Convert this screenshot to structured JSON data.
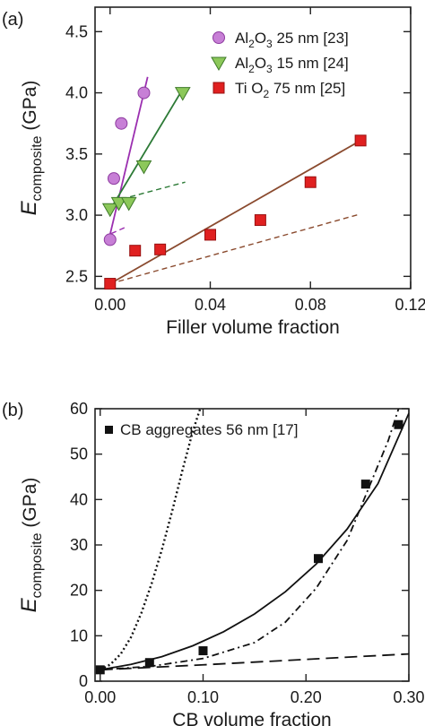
{
  "chart_data": [
    {
      "panel_label": "(a)",
      "type": "scatter",
      "xlabel": "Filler volume fraction",
      "ylabel": {
        "main": "E",
        "subscript": "composite",
        "unit": " (GPa)"
      },
      "xlim": [
        -0.006,
        0.12
      ],
      "ylim": [
        2.4,
        4.7
      ],
      "xticks": [
        0.0,
        0.04,
        0.08,
        0.12
      ],
      "xtick_labels": [
        "0.00",
        "0.04",
        "0.08",
        "0.12"
      ],
      "yticks": [
        2.5,
        3.0,
        3.5,
        4.0,
        4.5
      ],
      "ytick_labels": [
        "2.5",
        "3.0",
        "3.5",
        "4.0",
        "4.5"
      ],
      "grid": false,
      "legend_position": "top-right",
      "series": [
        {
          "name": "Al2O3 25 nm [23]",
          "legend": {
            "pre": "Al",
            "sub1": "2",
            "mid": "O",
            "sub2": "3",
            "post": "  25 nm [23]"
          },
          "marker": "circle",
          "color": "#c77fd6",
          "edge": "#8e3ca0",
          "line_color": "#9b2fb0",
          "x": [
            0.0,
            0.0015,
            0.0045,
            0.0135
          ],
          "y": [
            2.8,
            3.3,
            3.75,
            4.0
          ],
          "fit_solid": [
            [
              -0.0005,
              2.8
            ],
            [
              0.015,
              4.13
            ]
          ],
          "fit_dashed": [
            [
              0.0005,
              2.85
            ],
            [
              0.006,
              2.9
            ]
          ]
        },
        {
          "name": "Al2O3 15 nm [24]",
          "legend": {
            "pre": "Al",
            "sub1": "2",
            "mid": "O",
            "sub2": "3",
            "post": "  15 nm [24]"
          },
          "marker": "triangle-down",
          "color": "#8cc85a",
          "edge": "#3e7a2a",
          "line_color": "#2c7a36",
          "x": [
            0.0,
            0.0035,
            0.0075,
            0.0135,
            0.029
          ],
          "y": [
            3.05,
            3.1,
            3.1,
            3.4,
            4.0
          ],
          "fit_solid": [
            [
              0.0002,
              3.05
            ],
            [
              0.029,
              4.03
            ]
          ],
          "fit_dashed": [
            [
              0.008,
              3.15
            ],
            [
              0.03,
              3.27
            ]
          ]
        },
        {
          "name": "TiO2 75 nm [25]",
          "legend": {
            "pre": "Ti O",
            "sub1": "2",
            "mid": "",
            "sub2": "",
            "post": "  75 nm [25]"
          },
          "marker": "square",
          "color": "#e02020",
          "edge": "#991111",
          "line_color": "#8a4a2e",
          "x": [
            0.0,
            0.01,
            0.02,
            0.04,
            0.06,
            0.08,
            0.1
          ],
          "y": [
            2.44,
            2.71,
            2.72,
            2.84,
            2.96,
            3.27,
            3.61
          ],
          "fit_solid": [
            [
              0.0,
              2.44
            ],
            [
              0.1,
              3.61
            ]
          ],
          "fit_dashed": [
            [
              0.0,
              2.44
            ],
            [
              0.1,
              3.01
            ]
          ]
        }
      ]
    },
    {
      "panel_label": "(b)",
      "type": "scatter",
      "xlabel": "CB volume fraction",
      "ylabel": {
        "main": "E",
        "subscript": "composite",
        "unit": " (GPa)"
      },
      "xlim": [
        -0.005,
        0.3
      ],
      "ylim": [
        0,
        60
      ],
      "xticks": [
        0.0,
        0.1,
        0.2,
        0.3
      ],
      "xtick_labels": [
        "0.00",
        "0.10",
        "0.20",
        "0.30"
      ],
      "yticks": [
        0,
        10,
        20,
        30,
        40,
        50,
        60
      ],
      "ytick_labels": [
        "0",
        "10",
        "20",
        "30",
        "40",
        "50",
        "60"
      ],
      "grid": false,
      "legend_position": "top-left",
      "series": [
        {
          "name": "CB aggregates 56 nm [17]",
          "marker": "square",
          "color": "#111111",
          "x": [
            0.0,
            0.048,
            0.1,
            0.212,
            0.258,
            0.29
          ],
          "y": [
            2.5,
            4.1,
            6.7,
            27.0,
            43.4,
            56.5
          ]
        }
      ],
      "model_curves": [
        {
          "style": "solid",
          "x": [
            0.0,
            0.03,
            0.06,
            0.09,
            0.12,
            0.15,
            0.18,
            0.21,
            0.24,
            0.27,
            0.3
          ],
          "y": [
            2.5,
            3.7,
            5.4,
            7.8,
            10.9,
            14.8,
            19.7,
            25.8,
            33.5,
            43.5,
            59.0
          ]
        },
        {
          "style": "dashdot",
          "x": [
            0.0,
            0.05,
            0.1,
            0.15,
            0.18,
            0.21,
            0.24,
            0.26,
            0.28,
            0.29
          ],
          "y": [
            2.5,
            3.3,
            5.0,
            8.5,
            13.0,
            20.5,
            31.0,
            42.0,
            53.0,
            60.0
          ]
        },
        {
          "style": "dotted",
          "x": [
            0.0,
            0.01,
            0.02,
            0.03,
            0.04,
            0.05,
            0.06,
            0.07,
            0.08,
            0.09,
            0.1
          ],
          "y": [
            2.5,
            3.7,
            6.0,
            9.7,
            15.0,
            21.5,
            29.0,
            37.5,
            46.5,
            55.0,
            62.0
          ]
        },
        {
          "style": "dashed",
          "x": [
            0.0,
            0.1,
            0.2,
            0.3
          ],
          "y": [
            2.5,
            3.6,
            4.8,
            6.0
          ]
        }
      ]
    }
  ]
}
